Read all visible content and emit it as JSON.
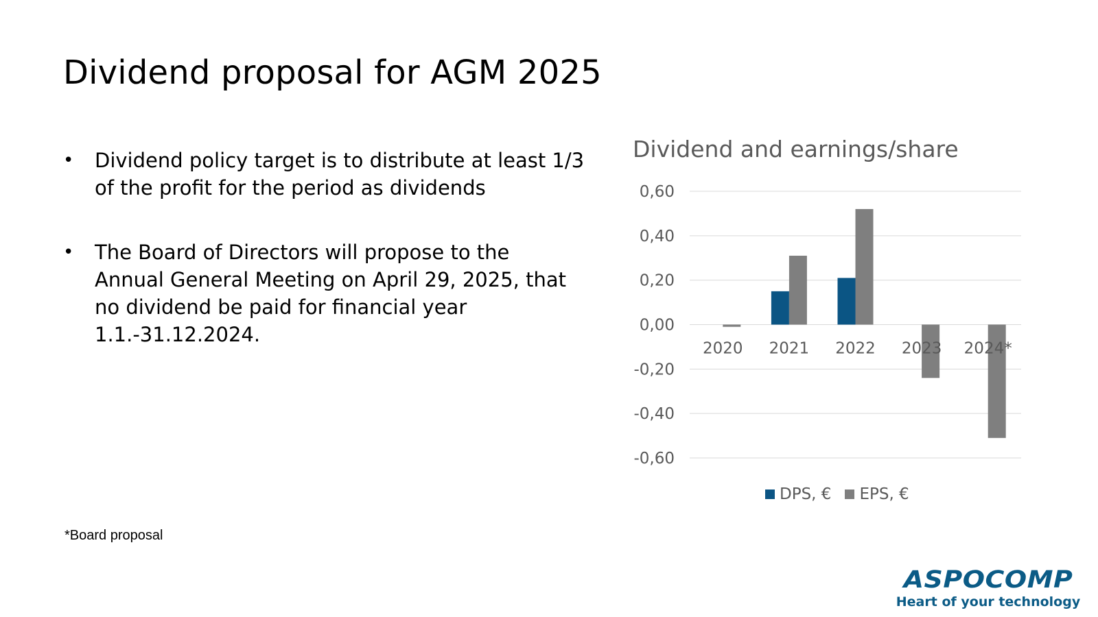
{
  "slide": {
    "title": "Dividend proposal for AGM 2025",
    "bullets": [
      {
        "symbol": "•",
        "text": "Dividend policy target is to distribute at least 1/3 of the profit for the period as dividends"
      },
      {
        "symbol": "•",
        "text": "The Board of Directors will propose to the Annual General Meeting on April 29, 2025, that no dividend be paid for financial year 1.1.-31.12.2024."
      }
    ],
    "footnote": "*Board proposal"
  },
  "logo": {
    "name": "ASPOCOMP",
    "tagline": "Heart of your technology"
  },
  "colors": {
    "dps": "#0b5584",
    "eps": "#7f7f7f",
    "brand": "#0b5b86",
    "grid": "#d9d9d9",
    "text_gray": "#595959"
  },
  "chart_data": {
    "type": "bar",
    "title": "Dividend and earnings/share",
    "categories": [
      "2020",
      "2021",
      "2022",
      "2023",
      "2024*"
    ],
    "series": [
      {
        "name": "DPS, €",
        "values": [
          0,
          0.15,
          0.21,
          0,
          0
        ]
      },
      {
        "name": "EPS, €",
        "values": [
          -0.01,
          0.31,
          0.52,
          -0.24,
          -0.51
        ]
      }
    ],
    "ylim": [
      -0.6,
      0.6
    ],
    "yticks": [
      0.6,
      0.4,
      0.2,
      0.0,
      -0.2,
      -0.4,
      -0.6
    ],
    "ytick_labels": [
      "0,60",
      "0,40",
      "0,20",
      "0,00",
      "-0,20",
      "-0,40",
      "-0,60"
    ],
    "grid": true,
    "legend": "bottom"
  }
}
